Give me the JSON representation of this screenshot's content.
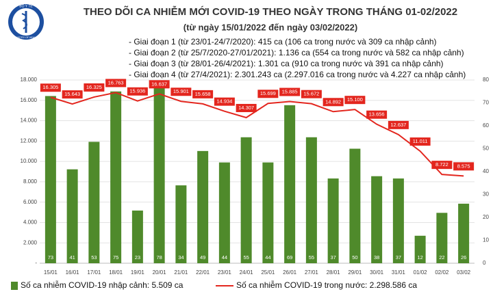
{
  "logo": {
    "top": "BỘ Y TẾ",
    "bottom": "MINISTRY OF HEALTH"
  },
  "chart_data": {
    "type": "combo",
    "title": "THEO DÕI CA NHIỄM MỚI COVID-19 THEO NGÀY TRONG THÁNG 01-02/2022",
    "subtitle": "(từ ngày 15/01/2022 đến ngày 03/02/2022)",
    "annotations": [
      "- Giai đoạn 1 (từ 23/01-24/7/2020): 415 ca (106 ca trong nước và 309 ca nhập cảnh)",
      "- Giai đoạn 2 (từ 25/7/2020-27/01/2021): 1.136 ca (554 ca trong nước và 582 ca nhập cảnh)",
      "- Giai đoạn 3 (từ 28/01-26/4/2021): 1.301 ca (910 ca trong nước và 391 ca nhập cảnh)",
      "- Giai đoạn 4 (từ 27/4/2021): 2.301.243 ca (2.297.016 ca trong nước và 4.227 ca nhập cảnh)"
    ],
    "categories": [
      "15/01",
      "16/01",
      "17/01",
      "18/01",
      "19/01",
      "20/01",
      "21/01",
      "22/01",
      "23/01",
      "24/01",
      "25/01",
      "26/01",
      "27/01",
      "28/01",
      "29/01",
      "30/01",
      "31/01",
      "01/02",
      "02/02",
      "03/02"
    ],
    "series": [
      {
        "name": "Số ca nhiễm COVID-19 nhập cảnh: 5.509 ca",
        "type": "bar",
        "axis": "y2",
        "color": "#4f8a2b",
        "values": [
          73,
          41,
          53,
          75,
          23,
          78,
          34,
          49,
          44,
          55,
          44,
          69,
          55,
          37,
          50,
          38,
          37,
          12,
          22,
          26
        ]
      },
      {
        "name": "Số ca nhiễm COVID-19 trong nước: 2.298.586 ca",
        "type": "line",
        "color": "#e3261e",
        "values": [
          16305,
          15643,
          16325,
          16763,
          15936,
          16637,
          15901,
          15658,
          14934,
          14307,
          15699,
          15885,
          15672,
          14892,
          15100,
          13656,
          12637,
          11011,
          8722,
          8575
        ],
        "value_labels": [
          "16.305",
          "15.643",
          "16.325",
          "16.763",
          "15.936",
          "16.637",
          "15.901",
          "15.658",
          "14.934",
          "14.307",
          "15.699",
          "15.885",
          "15.672",
          "14.892",
          "15.100",
          "13.656",
          "12.637",
          "11.011",
          "8.722",
          "8.575"
        ]
      }
    ],
    "ylim": [
      0,
      18000
    ],
    "yticks": [
      {
        "value": 0,
        "label": "-"
      },
      {
        "value": 2000,
        "label": "2.000"
      },
      {
        "value": 4000,
        "label": "4.000"
      },
      {
        "value": 6000,
        "label": "6.000"
      },
      {
        "value": 8000,
        "label": "8.000"
      },
      {
        "value": 10000,
        "label": "10.000"
      },
      {
        "value": 12000,
        "label": "12.000"
      },
      {
        "value": 14000,
        "label": "14.000"
      },
      {
        "value": 16000,
        "label": "16.000"
      },
      {
        "value": 18000,
        "label": "18.000"
      }
    ],
    "y2lim": [
      0,
      80
    ],
    "y2ticks": [
      0,
      10,
      20,
      30,
      40,
      50,
      60,
      70,
      80
    ],
    "grid": true
  }
}
